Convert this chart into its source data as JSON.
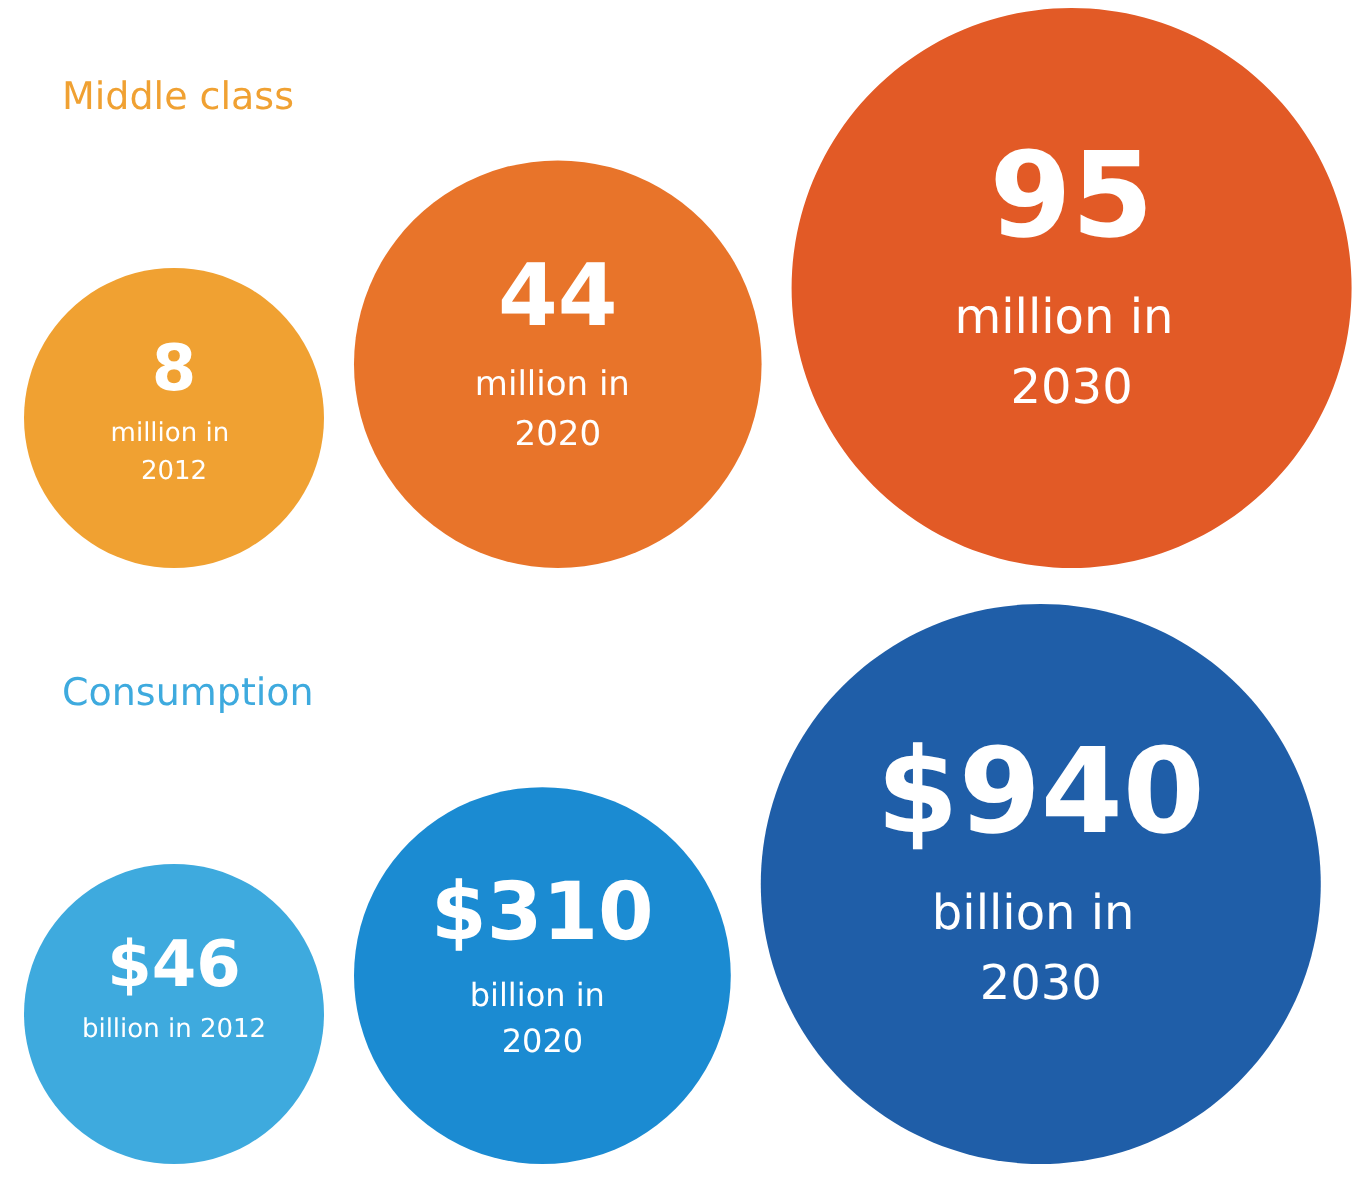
{
  "chart_data": [
    {
      "type": "other",
      "title": "Middle class",
      "categories": [
        "million in 2012",
        "million in 2020",
        "million in 2030"
      ],
      "values": [
        8,
        44,
        95
      ],
      "value_labels": [
        "8",
        "44",
        "95"
      ],
      "colors": [
        "#f0a132",
        "#e8742a",
        "#e25a26"
      ]
    },
    {
      "type": "other",
      "title": "Consumption",
      "categories": [
        "billion in 2012",
        "billion in 2020",
        "billion in 2030"
      ],
      "values": [
        46,
        310,
        940
      ],
      "value_labels": [
        "$46",
        "$310",
        "$940"
      ],
      "colors": [
        "#3eaade",
        "#1b8bd2",
        "#1f5ea8"
      ]
    }
  ]
}
